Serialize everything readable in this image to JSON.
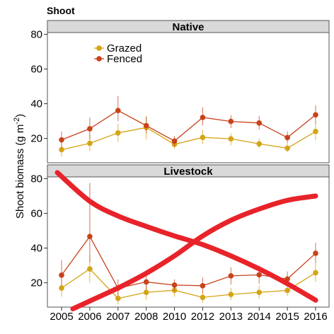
{
  "chart_data": {
    "type": "line",
    "title": "Shoot",
    "ylabel": "Shoot biomass (g m",
    "ylabel_superscript": "-2",
    "ylabel_suffix": ")",
    "categories": [
      "2005",
      "2006",
      "2007",
      "2008",
      "2010",
      "2012",
      "2013",
      "2014",
      "2015",
      "2016"
    ],
    "ylim": [
      6,
      81
    ],
    "yticks": [
      20,
      40,
      60,
      80
    ],
    "colors": {
      "Grazed": "#d4a414",
      "Fenced": "#c8431b",
      "annotation": "#e8232a"
    },
    "legend_position": "top-left",
    "panels": [
      {
        "name": "Native",
        "series": [
          {
            "name": "Grazed",
            "values": [
              13.5,
              17.2,
              23.2,
              26.3,
              16.6,
              20.6,
              19.8,
              16.9,
              14.4,
              24.0
            ],
            "err_low": [
              9.5,
              12.5,
              18.0,
              19.5,
              14.0,
              16.8,
              16.0,
              14.5,
              12.0,
              19.0
            ],
            "err_high": [
              18.0,
              22.5,
              28.5,
              33.0,
              19.5,
              25.0,
              23.0,
              20.0,
              17.5,
              29.0
            ]
          },
          {
            "name": "Fenced",
            "values": [
              19.2,
              25.6,
              36.1,
              27.4,
              18.5,
              32.1,
              29.8,
              28.9,
              20.5,
              33.6
            ],
            "err_low": [
              14.5,
              19.5,
              30.0,
              23.0,
              15.5,
              27.5,
              26.0,
              25.0,
              17.5,
              28.5
            ],
            "err_high": [
              24.0,
              32.0,
              44.5,
              32.5,
              21.5,
              38.0,
              33.5,
              33.0,
              24.0,
              39.0
            ]
          }
        ]
      },
      {
        "name": "Livestock",
        "series": [
          {
            "name": "Grazed",
            "values": [
              17.0,
              28.0,
              11.0,
              14.5,
              15.7,
              11.6,
              13.3,
              14.5,
              15.6,
              25.8
            ],
            "err_low": [
              12.0,
              20.0,
              7.5,
              10.0,
              12.0,
              8.5,
              10.0,
              11.0,
              12.5,
              20.5
            ],
            "err_high": [
              22.5,
              36.0,
              15.0,
              19.0,
              19.5,
              15.0,
              17.0,
              18.5,
              19.0,
              31.5
            ]
          },
          {
            "name": "Fenced",
            "values": [
              24.4,
              46.7,
              16.9,
              20.5,
              18.7,
              18.3,
              24.0,
              24.6,
              22.2,
              37.0
            ],
            "err_low": [
              18.0,
              32.0,
              12.5,
              16.0,
              15.5,
              14.0,
              19.0,
              19.5,
              18.0,
              31.5
            ],
            "err_high": [
              33.0,
              77.5,
              22.0,
              26.0,
              22.0,
              23.0,
              29.0,
              30.0,
              26.5,
              43.0
            ]
          }
        ]
      }
    ],
    "annotations": [
      {
        "name": "annotation-curve-down",
        "x": [
          -0.15,
          1.0,
          2.0,
          3.0,
          4.0,
          5.0,
          6.0,
          7.0,
          8.0,
          9.0
        ],
        "y": [
          83.5,
          67.0,
          58.5,
          52.5,
          47.0,
          42.0,
          35.5,
          28.0,
          19.5,
          10.0
        ]
      },
      {
        "name": "annotation-curve-up",
        "x": [
          0.4,
          1.0,
          2.0,
          3.0,
          4.0,
          5.0,
          6.0,
          7.0,
          8.0,
          9.0
        ],
        "y": [
          5.0,
          9.5,
          17.0,
          25.5,
          35.5,
          47.0,
          56.0,
          62.5,
          67.5,
          70.0
        ]
      }
    ]
  }
}
